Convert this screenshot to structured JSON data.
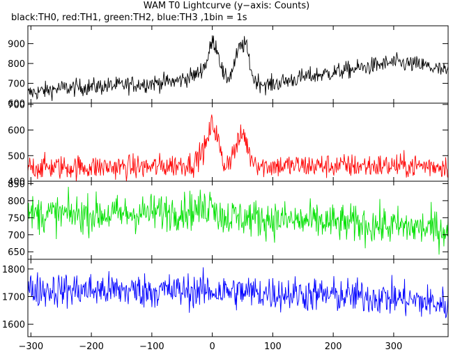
{
  "title": "WAM T0 Lightcurve (y−axis: Counts)",
  "subtitle": "black:TH0, red:TH1, green:TH2, blue:TH3 ,1bin = 1s",
  "chart_data": {
    "type": "line",
    "xlim": [
      -305,
      390
    ],
    "x_ticks": [
      -300,
      -200,
      -100,
      0,
      100,
      200,
      300
    ],
    "x_step": 1,
    "panels": [
      {
        "name": "TH0",
        "color": "#000000",
        "ylim": [
          600,
          990
        ],
        "y_ticks": [
          600,
          700,
          800,
          900
        ],
        "base": [
          [
            -305,
            650
          ],
          [
            -250,
            675
          ],
          [
            -150,
            690
          ],
          [
            -60,
            710
          ],
          [
            -25,
            745
          ],
          [
            -10,
            800
          ],
          [
            0,
            915
          ],
          [
            8,
            880
          ],
          [
            20,
            720
          ],
          [
            30,
            740
          ],
          [
            45,
            880
          ],
          [
            55,
            900
          ],
          [
            68,
            720
          ],
          [
            90,
            690
          ],
          [
            150,
            730
          ],
          [
            250,
            780
          ],
          [
            300,
            805
          ],
          [
            350,
            790
          ],
          [
            390,
            755
          ]
        ],
        "noise": 22
      },
      {
        "name": "TH1",
        "color": "#ff0000",
        "ylim": [
          400,
          705
        ],
        "y_ticks": [
          400,
          500,
          600,
          700
        ],
        "base": [
          [
            -305,
            455
          ],
          [
            -100,
            455
          ],
          [
            -30,
            470
          ],
          [
            -10,
            540
          ],
          [
            0,
            630
          ],
          [
            8,
            580
          ],
          [
            18,
            460
          ],
          [
            30,
            490
          ],
          [
            45,
            560
          ],
          [
            52,
            590
          ],
          [
            62,
            500
          ],
          [
            80,
            460
          ],
          [
            390,
            460
          ]
        ],
        "noise": 24
      },
      {
        "name": "TH2",
        "color": "#00e000",
        "ylim": [
          628,
          857
        ],
        "y_ticks": [
          650,
          700,
          750,
          800,
          850
        ],
        "base": [
          [
            -305,
            760
          ],
          [
            -150,
            760
          ],
          [
            -10,
            775
          ],
          [
            0,
            810
          ],
          [
            10,
            755
          ],
          [
            100,
            745
          ],
          [
            250,
            730
          ],
          [
            390,
            715
          ]
        ],
        "noise": 28
      },
      {
        "name": "TH3",
        "color": "#0000ff",
        "ylim": [
          1555,
          1835
        ],
        "y_ticks": [
          1600,
          1700,
          1800
        ],
        "base": [
          [
            -305,
            1725
          ],
          [
            0,
            1720
          ],
          [
            200,
            1705
          ],
          [
            300,
            1695
          ],
          [
            390,
            1670
          ]
        ],
        "noise": 32
      }
    ]
  }
}
